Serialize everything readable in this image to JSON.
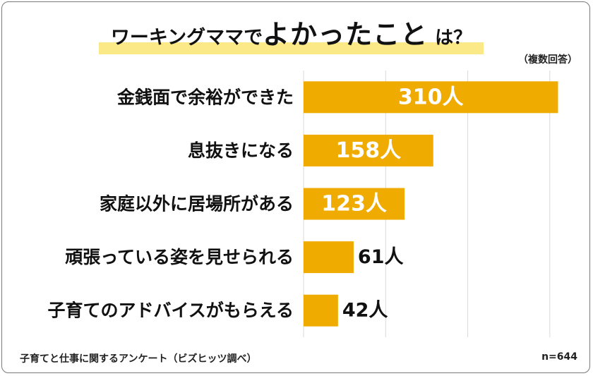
{
  "title": {
    "part1": "ワーキングママで",
    "part2": "よかったこと",
    "part3": "は？"
  },
  "note": "（複数回答）",
  "footer": {
    "source": "子育てと仕事に関するアンケート（ビズヒッツ調べ）",
    "sample": "n=644"
  },
  "colors": {
    "bar": "#f0ab00",
    "highlight": "#fbe988",
    "grid": "#d9d9d9"
  },
  "chart_data": {
    "type": "bar",
    "orientation": "horizontal",
    "categories": [
      "金銭面で余裕ができた",
      "息抜きになる",
      "家庭以外に居場所がある",
      "頑張っている姿を見せられる",
      "子育てのアドバイスがもらえる"
    ],
    "values": [
      310,
      158,
      123,
      61,
      42
    ],
    "value_labels": [
      "310人",
      "158人",
      "123人",
      "61人",
      "42人"
    ],
    "xlim": [
      0,
      350
    ],
    "grid": true
  }
}
